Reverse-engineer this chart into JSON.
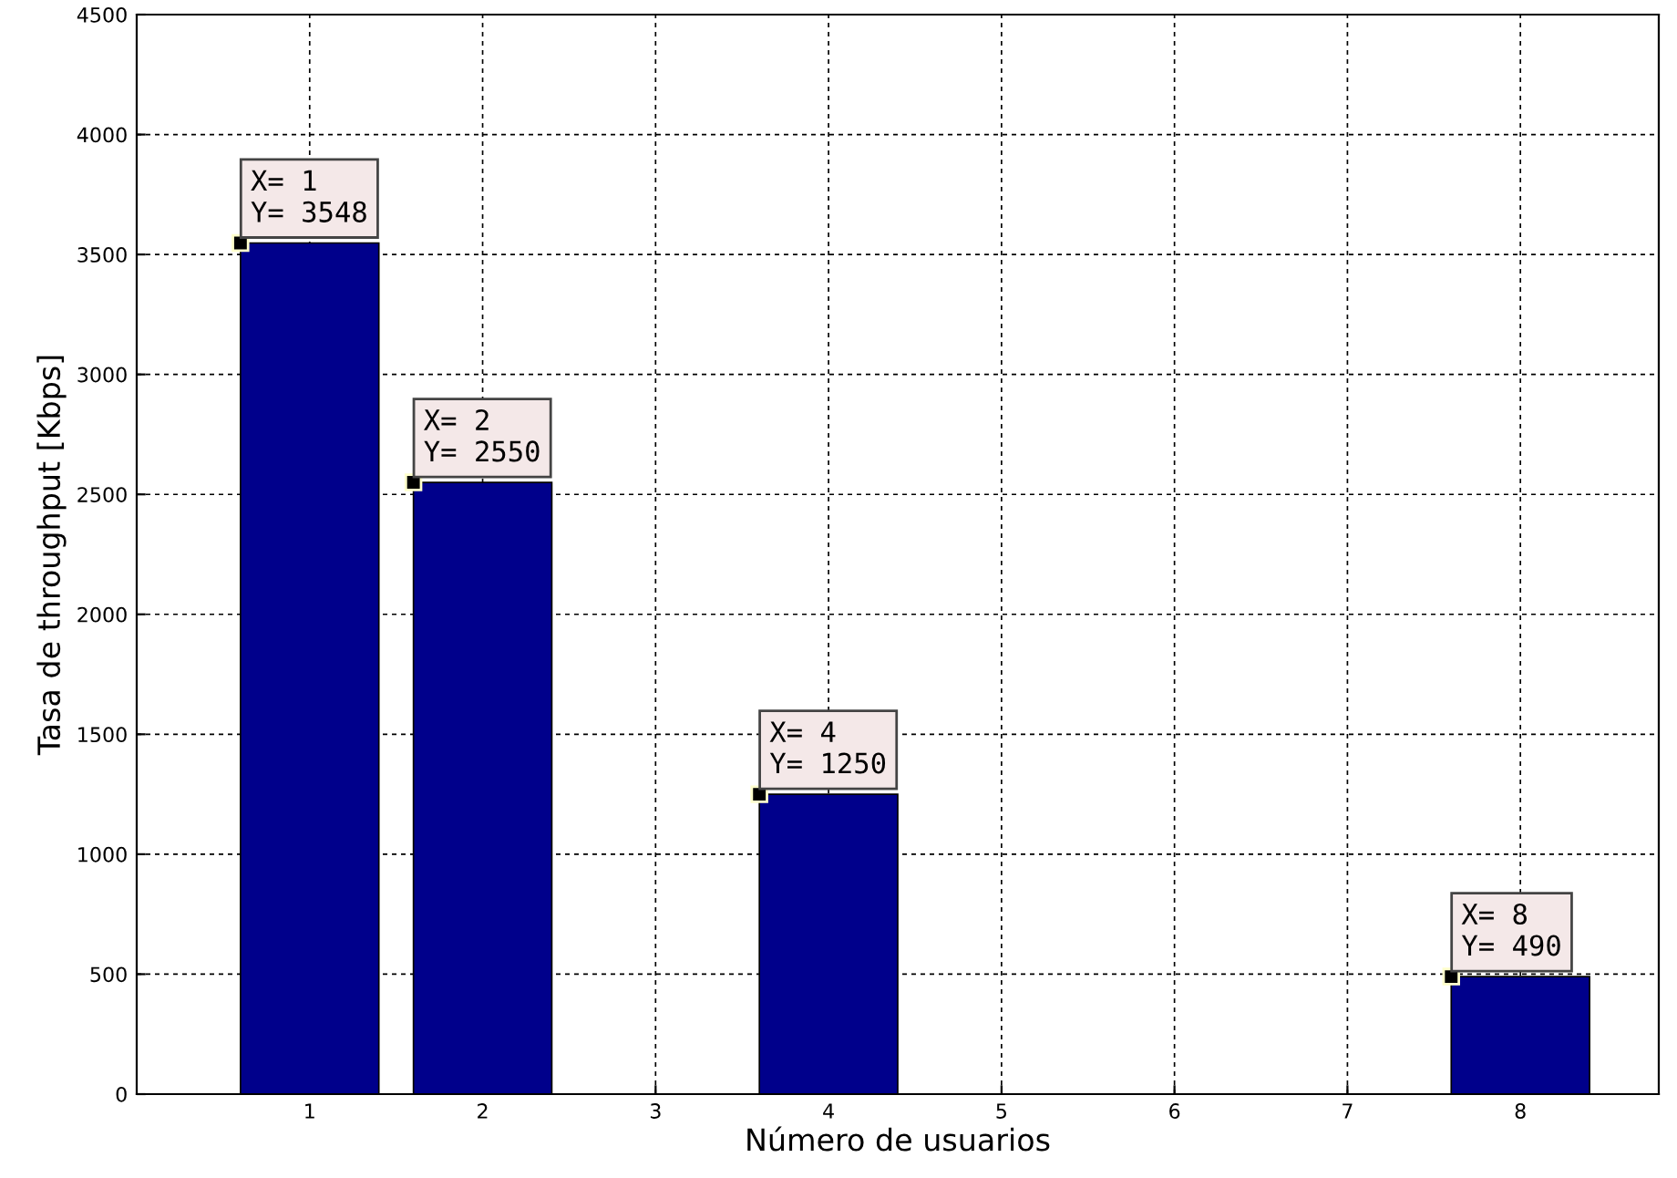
{
  "chart_data": {
    "type": "bar",
    "xlabel": "Número de usuarios",
    "ylabel": "Tasa de throughput [Kbps]",
    "x": [
      1,
      2,
      4,
      8
    ],
    "series": [
      {
        "color": "#00008b",
        "values": [
          3548,
          2550,
          1250,
          490
        ]
      }
    ],
    "xlim": [
      0,
      8.8
    ],
    "xticks": [
      1,
      2,
      3,
      4,
      5,
      6,
      7,
      8
    ],
    "ylim": [
      0,
      4500
    ],
    "yticks": [
      0,
      500,
      1000,
      1500,
      2000,
      2500,
      3000,
      3500,
      4000,
      4500
    ],
    "grid": true,
    "annotations": [
      {
        "text": "X= 1\nY= 3548",
        "x": 1,
        "y": 3548
      },
      {
        "text": "X= 2\nY= 2550",
        "x": 2,
        "y": 2550
      },
      {
        "text": "X= 4\nY= 1250",
        "x": 4,
        "y": 1250
      },
      {
        "text": "X= 8\nY= 490",
        "x": 8,
        "y": 490
      }
    ]
  }
}
